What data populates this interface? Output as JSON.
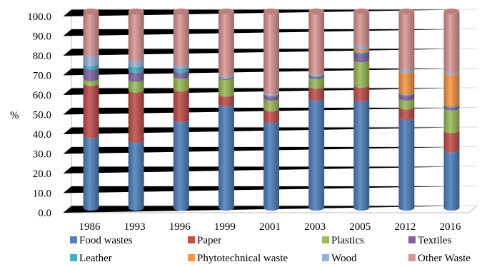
{
  "chart_data": {
    "type": "bar",
    "stacked": true,
    "style": "3d-cylinder",
    "categories": [
      "1986",
      "1993",
      "1996",
      "1999",
      "2001",
      "2003",
      "2005",
      "2012",
      "2016"
    ],
    "ylabel": "%",
    "ylim": [
      0,
      100
    ],
    "yticks": [
      "0.0",
      "10.0",
      "20.0",
      "30.0",
      "40.0",
      "50.0",
      "60.0",
      "70.0",
      "80.0",
      "90.0",
      "100.0"
    ],
    "grid": true,
    "legend_position": "bottom",
    "series": [
      {
        "name": "Food wastes",
        "color": "#4f81bd",
        "values": [
          37,
          34.5,
          45,
          53,
          44.5,
          56,
          55.5,
          46,
          29.5
        ]
      },
      {
        "name": "Paper",
        "color": "#c0504d",
        "values": [
          26.5,
          25.5,
          15.5,
          5,
          6,
          6,
          7,
          5.5,
          10
        ]
      },
      {
        "name": "Plastics",
        "color": "#9bbb59",
        "values": [
          2.5,
          5.5,
          6.5,
          8.5,
          5.5,
          5,
          13,
          4.5,
          11.5
        ]
      },
      {
        "name": "Textiles",
        "color": "#8064a2",
        "values": [
          5.5,
          4.5,
          3,
          0.5,
          2,
          1,
          4.5,
          2.5,
          1.5
        ]
      },
      {
        "name": "Leather",
        "color": "#4bacc6",
        "values": [
          2,
          3,
          2,
          0.5,
          0.5,
          0.5,
          0.5,
          0.5,
          0.5
        ]
      },
      {
        "name": "Phytotechnical waste",
        "color": "#f79646",
        "values": [
          0,
          0,
          0,
          0,
          0,
          0,
          1.5,
          11,
          16
        ]
      },
      {
        "name": "Wood",
        "color": "#95b3d7",
        "values": [
          5,
          3,
          1.5,
          0.5,
          0.5,
          0.5,
          1.5,
          1.5,
          1
        ]
      },
      {
        "name": "Other Waste",
        "color": "#da9694",
        "values": [
          21.5,
          24,
          26.5,
          32,
          41,
          31,
          16.5,
          28.5,
          30
        ]
      }
    ]
  }
}
